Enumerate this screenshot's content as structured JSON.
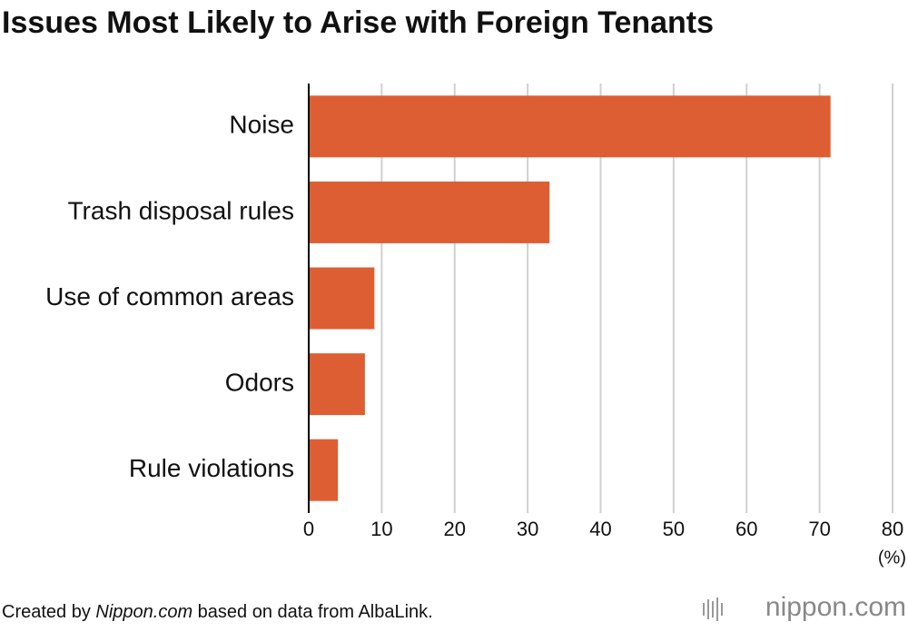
{
  "chart_data": {
    "type": "hbar",
    "title": "Issues Most Likely to Arise with Foreign Tenants",
    "categories": [
      "Noise",
      "Trash disposal rules",
      "Use of common areas",
      "Odors",
      "Rule violations"
    ],
    "values": [
      71.5,
      33,
      9,
      7.7,
      4
    ],
    "color": "#dd5e32",
    "xlim": [
      0,
      80
    ],
    "xticks": [
      0,
      10,
      20,
      30,
      40,
      50,
      60,
      70,
      80
    ],
    "grid": true,
    "x_unit": "(%)",
    "source": {
      "prefix": "Created by ",
      "site": "Nippon.com",
      "suffix": " based on data from AlbaLink."
    },
    "logo": "nippon.com"
  }
}
